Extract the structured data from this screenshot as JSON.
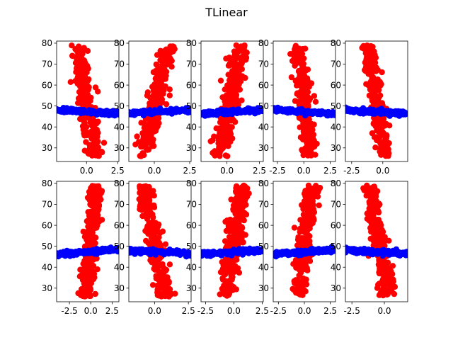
{
  "figure": {
    "title": "TLinear"
  },
  "colors": {
    "red": "#ff0000",
    "blue": "#0000ff"
  },
  "chart_data": [
    {
      "type": "scatter",
      "panel": 1,
      "xlim": [
        -2.4,
        2.6
      ],
      "ylim": [
        23.5,
        81
      ],
      "xticks": [
        0,
        2.5
      ],
      "xtick_labels": [
        "0.0",
        "2.5"
      ],
      "yticks": [
        30,
        40,
        50,
        60,
        70,
        80
      ],
      "ytick_labels": [
        "30",
        "40",
        "50",
        "60",
        "70",
        "80"
      ],
      "grid": false,
      "series": [
        {
          "color": "red",
          "trend": "decreasing",
          "x_center": 0,
          "x_spread": 0.7,
          "slope": -0.55
        },
        {
          "color": "blue",
          "y": [
            45.5,
            49
          ],
          "x_range": [
            -2.4,
            2.6
          ]
        }
      ]
    },
    {
      "type": "scatter",
      "panel": 2,
      "xlim": [
        -1.8,
        2.6
      ],
      "ylim": [
        23.5,
        81
      ],
      "xticks": [
        0,
        2.5
      ],
      "xtick_labels": [
        "0.0",
        "2.5"
      ],
      "yticks": [
        30,
        40,
        50,
        60,
        70,
        80
      ],
      "ytick_labels": [
        "30",
        "40",
        "50",
        "60",
        "70",
        "80"
      ],
      "grid": false,
      "series": [
        {
          "color": "red",
          "trend": "increasing",
          "x_center": 0.1,
          "x_spread": 0.7,
          "slope": 0.7
        },
        {
          "color": "blue",
          "y": [
            45.5,
            49
          ],
          "x_range": [
            -1.8,
            2.6
          ]
        }
      ]
    },
    {
      "type": "scatter",
      "panel": 3,
      "xlim": [
        -2.0,
        2.8
      ],
      "ylim": [
        23.5,
        81
      ],
      "xticks": [
        0,
        2.5
      ],
      "xtick_labels": [
        "0.0",
        "2.5"
      ],
      "yticks": [
        30,
        40,
        50,
        60,
        70,
        80
      ],
      "ytick_labels": [
        "30",
        "40",
        "50",
        "60",
        "70",
        "80"
      ],
      "grid": false,
      "series": [
        {
          "color": "red",
          "trend": "increasing",
          "x_center": 0.3,
          "x_spread": 0.75,
          "slope": 0.7
        },
        {
          "color": "blue",
          "y": [
            45.5,
            49
          ],
          "x_range": [
            -2.0,
            2.8
          ]
        }
      ]
    },
    {
      "type": "scatter",
      "panel": 4,
      "xlim": [
        -2.9,
        3.0
      ],
      "ylim": [
        23.5,
        81
      ],
      "xticks": [
        -2.5,
        0,
        2.5
      ],
      "xtick_labels": [
        "-2.5",
        "0.0",
        "2.5"
      ],
      "yticks": [
        30,
        40,
        50,
        60,
        70,
        80
      ],
      "ytick_labels": [
        "30",
        "40",
        "50",
        "60",
        "70",
        "80"
      ],
      "grid": false,
      "series": [
        {
          "color": "red",
          "trend": "decreasing",
          "x_center": 0,
          "x_spread": 0.8,
          "slope": -0.5
        },
        {
          "color": "blue",
          "y": [
            45.5,
            49
          ],
          "x_range": [
            -2.9,
            3.0
          ]
        }
      ]
    },
    {
      "type": "scatter",
      "panel": 5,
      "xlim": [
        -3.0,
        2.0
      ],
      "ylim": [
        23.5,
        81
      ],
      "xticks": [
        -2.5,
        0
      ],
      "xtick_labels": [
        "-2.5",
        "0.0"
      ],
      "yticks": [
        30,
        40,
        50,
        60,
        70,
        80
      ],
      "ytick_labels": [
        "30",
        "40",
        "50",
        "60",
        "70",
        "80"
      ],
      "grid": false,
      "series": [
        {
          "color": "red",
          "trend": "decreasing",
          "x_center": -0.5,
          "x_spread": 0.6,
          "slope": -0.6
        },
        {
          "color": "blue",
          "y": [
            45.5,
            49
          ],
          "x_range": [
            -3.0,
            2.0
          ]
        }
      ]
    },
    {
      "type": "scatter",
      "panel": 6,
      "xlim": [
        -4.0,
        3.3
      ],
      "ylim": [
        23.5,
        81
      ],
      "xticks": [
        -2.5,
        0,
        2.5
      ],
      "xtick_labels": [
        "-2.5",
        "0.0",
        "2.5"
      ],
      "yticks": [
        30,
        40,
        50,
        60,
        70,
        80
      ],
      "ytick_labels": [
        "30",
        "40",
        "50",
        "60",
        "70",
        "80"
      ],
      "grid": false,
      "series": [
        {
          "color": "red",
          "trend": "increasing",
          "x_center": 0,
          "x_spread": 0.9,
          "slope": 0.55
        },
        {
          "color": "blue",
          "y": [
            45.5,
            49
          ],
          "x_range": [
            -4.0,
            3.3
          ]
        }
      ]
    },
    {
      "type": "scatter",
      "panel": 7,
      "xlim": [
        -1.9,
        2.7
      ],
      "ylim": [
        23.5,
        81
      ],
      "xticks": [
        0,
        2.5
      ],
      "xtick_labels": [
        "0.0",
        "2.5"
      ],
      "yticks": [
        30,
        40,
        50,
        60,
        70,
        80
      ],
      "ytick_labels": [
        "30",
        "40",
        "50",
        "60",
        "70",
        "80"
      ],
      "grid": false,
      "series": [
        {
          "color": "red",
          "trend": "decreasing",
          "x_center": 0,
          "x_spread": 0.65,
          "slope": -0.65
        },
        {
          "color": "blue",
          "y": [
            45.5,
            49
          ],
          "x_range": [
            -1.9,
            2.7
          ]
        }
      ]
    },
    {
      "type": "scatter",
      "panel": 8,
      "xlim": [
        -2.9,
        2.6
      ],
      "ylim": [
        23.5,
        81
      ],
      "xticks": [
        -2.5,
        0,
        2.5
      ],
      "xtick_labels": [
        "-2.5",
        "0.0",
        "2.5"
      ],
      "yticks": [
        30,
        40,
        50,
        60,
        70,
        80
      ],
      "ytick_labels": [
        "30",
        "40",
        "50",
        "60",
        "70",
        "80"
      ],
      "grid": false,
      "series": [
        {
          "color": "red",
          "trend": "increasing",
          "x_center": 0,
          "x_spread": 0.8,
          "slope": 0.55
        },
        {
          "color": "blue",
          "y": [
            45.5,
            49
          ],
          "x_range": [
            -2.9,
            2.6
          ]
        }
      ]
    },
    {
      "type": "scatter",
      "panel": 9,
      "xlim": [
        -3.0,
        3.0
      ],
      "ylim": [
        23.5,
        81
      ],
      "xticks": [
        -2.5,
        0,
        2.5
      ],
      "xtick_labels": [
        "-2.5",
        "0.0",
        "2.5"
      ],
      "yticks": [
        30,
        40,
        50,
        60,
        70,
        80
      ],
      "ytick_labels": [
        "30",
        "40",
        "50",
        "60",
        "70",
        "80"
      ],
      "grid": false,
      "series": [
        {
          "color": "red",
          "trend": "increasing",
          "x_center": 0.1,
          "x_spread": 0.8,
          "slope": 0.55
        },
        {
          "color": "blue",
          "y": [
            45.5,
            49
          ],
          "x_range": [
            -3.0,
            3.0
          ]
        }
      ]
    },
    {
      "type": "scatter",
      "panel": 10,
      "xlim": [
        -3.0,
        1.8
      ],
      "ylim": [
        23.5,
        81
      ],
      "xticks": [
        -2.5,
        0
      ],
      "xtick_labels": [
        "-2.5",
        "0.0"
      ],
      "yticks": [
        30,
        40,
        50,
        60,
        70,
        80
      ],
      "ytick_labels": [
        "30",
        "40",
        "50",
        "60",
        "70",
        "80"
      ],
      "grid": false,
      "series": [
        {
          "color": "red",
          "trend": "decreasing",
          "x_center": -0.4,
          "x_spread": 0.6,
          "slope": -0.6
        },
        {
          "color": "blue",
          "y": [
            45.5,
            49
          ],
          "x_range": [
            -3.0,
            1.8
          ]
        }
      ]
    }
  ]
}
